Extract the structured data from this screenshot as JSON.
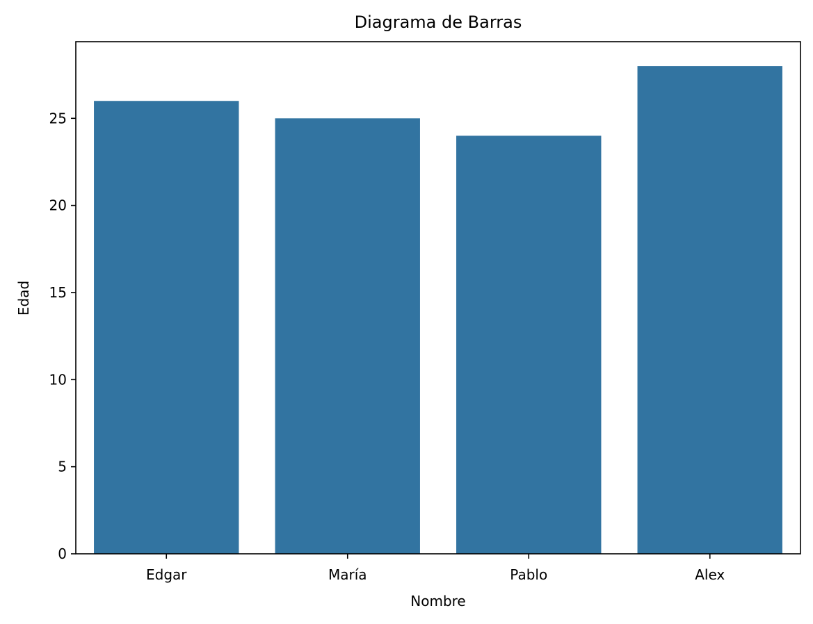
{
  "chart_data": {
    "type": "bar",
    "title": "Diagrama de Barras",
    "xlabel": "Nombre",
    "ylabel": "Edad",
    "categories": [
      "Edgar",
      "María",
      "Pablo",
      "Alex"
    ],
    "values": [
      26,
      25,
      24,
      28
    ],
    "ylim": [
      0,
      29.4
    ],
    "yticks": [
      0,
      5,
      10,
      15,
      20,
      25
    ],
    "ytick_labels": [
      "0",
      "5",
      "10",
      "15",
      "20",
      "25"
    ],
    "grid": false,
    "bar_color": "#3274a1"
  }
}
